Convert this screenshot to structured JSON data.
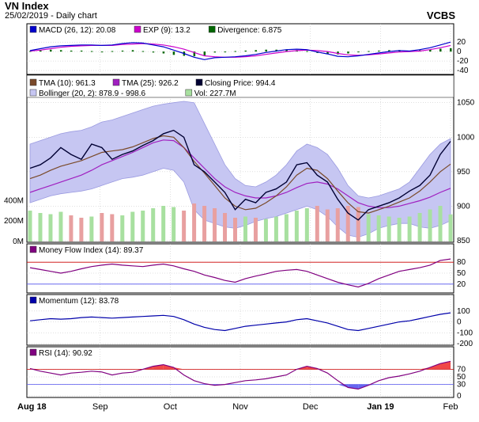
{
  "header": {
    "title": "VN Index",
    "subtitle": "25/02/2019 - Daily chart",
    "brand": "VCBS"
  },
  "colors": {
    "background": "#ffffff",
    "panel_border": "#000000",
    "grid": "#c0c0c0",
    "bollinger_fill": "#c6c6f2",
    "tma10": "#7a4a2a",
    "tma25": "#a020c0",
    "close": "#000033",
    "vol_up": "#a8e0a0",
    "vol_down": "#e8a0a0",
    "macd": "#0000cc",
    "exp": "#cc00cc",
    "divergence": "#006600",
    "mfi": "#800080",
    "momentum": "#0000aa",
    "rsi": "#800080",
    "overbought_fill": "#ee3333",
    "oversold_fill": "#5555ee",
    "ref_line": "#cc0000"
  },
  "x_axis": {
    "labels": [
      "Aug 18",
      "Sep",
      "Oct",
      "Nov",
      "Dec",
      "Jan 19",
      "Feb"
    ]
  },
  "chart_data": [
    {
      "type": "bar",
      "panel": "macd",
      "legend": [
        {
          "name": "MACD (26, 12)",
          "value": "20.08",
          "color": "#0000cc"
        },
        {
          "name": "EXP (9)",
          "value": "13.2",
          "color": "#cc00cc"
        },
        {
          "name": "Divergence",
          "value": "6.875",
          "color": "#006600"
        }
      ],
      "ylim": [
        -45,
        32
      ],
      "y_ticks": [
        -40,
        -20,
        0,
        20
      ],
      "series": [
        {
          "name": "MACD (26, 12)",
          "values": [
            2,
            6,
            10,
            12,
            13,
            14,
            14,
            13,
            14,
            17,
            19,
            18,
            14,
            10,
            3,
            -4,
            -12,
            -17,
            -13,
            -12,
            -11,
            -9,
            -6,
            -2,
            1,
            4,
            5,
            4,
            -1,
            -5,
            -10,
            -11,
            -9,
            -6,
            -3,
            0,
            2,
            1,
            4,
            8,
            14,
            20
          ]
        },
        {
          "name": "EXP (9)",
          "values": [
            1,
            3,
            6,
            9,
            11,
            12,
            13,
            13,
            13,
            15,
            16,
            17,
            16,
            14,
            10,
            5,
            -2,
            -9,
            -11,
            -12,
            -12,
            -11,
            -9,
            -6,
            -3,
            0,
            2,
            3,
            2,
            0,
            -4,
            -7,
            -8,
            -7,
            -5,
            -3,
            -1,
            0,
            1,
            4,
            8,
            13
          ]
        },
        {
          "name": "Divergence",
          "values": [
            1,
            3,
            4,
            3,
            2,
            2,
            1,
            0,
            1,
            2,
            3,
            1,
            -2,
            -4,
            -7,
            -9,
            -10,
            -8,
            -2,
            0,
            1,
            2,
            3,
            4,
            4,
            4,
            3,
            1,
            -3,
            -5,
            -6,
            -4,
            -1,
            1,
            2,
            3,
            3,
            1,
            3,
            4,
            6,
            7
          ]
        }
      ]
    },
    {
      "type": "line",
      "panel": "price",
      "legend": [
        {
          "name": "TMA (10)",
          "value": "961.3",
          "color": "#7a4a2a"
        },
        {
          "name": "TMA (25)",
          "value": "926.2",
          "color": "#a020c0"
        },
        {
          "name": "Closing Price",
          "value": "994.4",
          "color": "#000033"
        },
        {
          "name": "Bollinger (20, 2)",
          "value": "878.9 - 998.6",
          "color": "#c6c6f2"
        },
        {
          "name": "Vol",
          "value": "227.7M",
          "color": "#a8e0a0"
        }
      ],
      "ylim": [
        850,
        1060
      ],
      "y_ticks": [
        850,
        900,
        950,
        1000,
        1050
      ],
      "vol_ticks": [
        "0M",
        "200M",
        "400M"
      ],
      "vol_max": 800,
      "series": [
        {
          "name": "Closing Price",
          "values": [
            955,
            960,
            970,
            985,
            975,
            968,
            990,
            985,
            968,
            975,
            980,
            988,
            995,
            1005,
            1010,
            1000,
            960,
            950,
            935,
            920,
            895,
            910,
            905,
            920,
            925,
            935,
            960,
            963,
            945,
            935,
            910,
            890,
            880,
            895,
            900,
            905,
            912,
            922,
            930,
            945,
            975,
            994
          ]
        },
        {
          "name": "TMA (10)",
          "values": [
            940,
            945,
            952,
            958,
            962,
            966,
            972,
            978,
            980,
            982,
            986,
            992,
            998,
            1002,
            1000,
            985,
            965,
            948,
            930,
            912,
            900,
            895,
            897,
            905,
            915,
            928,
            945,
            955,
            952,
            940,
            922,
            905,
            892,
            890,
            895,
            900,
            906,
            912,
            922,
            935,
            950,
            961
          ]
        },
        {
          "name": "TMA (25)",
          "values": [
            920,
            925,
            930,
            935,
            940,
            945,
            952,
            960,
            966,
            972,
            978,
            985,
            992,
            996,
            995,
            985,
            970,
            955,
            940,
            928,
            920,
            915,
            912,
            912,
            915,
            920,
            927,
            933,
            935,
            932,
            925,
            915,
            905,
            900,
            898,
            898,
            900,
            904,
            908,
            913,
            920,
            926
          ]
        },
        {
          "name": "Bollinger upper",
          "values": [
            990,
            995,
            1000,
            1005,
            1008,
            1010,
            1015,
            1022,
            1025,
            1030,
            1035,
            1040,
            1045,
            1048,
            1050,
            1052,
            1050,
            1020,
            990,
            960,
            940,
            930,
            928,
            935,
            945,
            960,
            980,
            990,
            985,
            975,
            955,
            930,
            915,
            912,
            915,
            920,
            925,
            935,
            955,
            975,
            990,
            998
          ]
        },
        {
          "name": "Bollinger lower",
          "values": [
            905,
            910,
            915,
            918,
            920,
            922,
            925,
            930,
            935,
            940,
            942,
            945,
            950,
            955,
            952,
            935,
            895,
            880,
            875,
            870,
            868,
            872,
            878,
            882,
            885,
            890,
            895,
            900,
            895,
            885,
            870,
            858,
            855,
            860,
            868,
            872,
            875,
            875,
            870,
            868,
            872,
            879
          ]
        },
        {
          "name": "Vol",
          "values": [
            260,
            240,
            230,
            250,
            220,
            200,
            210,
            240,
            230,
            220,
            250,
            260,
            280,
            300,
            290,
            260,
            320,
            300,
            280,
            240,
            200,
            210,
            200,
            190,
            210,
            230,
            260,
            280,
            300,
            270,
            280,
            300,
            290,
            230,
            220,
            210,
            200,
            210,
            240,
            270,
            300,
            228
          ]
        }
      ]
    },
    {
      "type": "line",
      "panel": "mfi",
      "legend": [
        {
          "name": "Money Flow Index (14)",
          "value": "89.37",
          "color": "#800080"
        }
      ],
      "ylim": [
        0,
        100
      ],
      "y_ticks": [
        20,
        50,
        80
      ],
      "series": [
        {
          "name": "Money Flow Index (14)",
          "values": [
            65,
            60,
            55,
            50,
            55,
            62,
            68,
            72,
            75,
            72,
            70,
            68,
            72,
            75,
            70,
            62,
            55,
            45,
            38,
            30,
            25,
            35,
            42,
            48,
            55,
            58,
            60,
            55,
            45,
            35,
            25,
            18,
            12,
            22,
            35,
            45,
            55,
            60,
            65,
            72,
            85,
            89
          ]
        }
      ]
    },
    {
      "type": "line",
      "panel": "momentum",
      "legend": [
        {
          "name": "Momentum (12)",
          "value": "83.78",
          "color": "#0000aa"
        }
      ],
      "ylim": [
        -200,
        150
      ],
      "y_ticks": [
        -200,
        -100,
        0,
        100
      ],
      "series": [
        {
          "name": "Momentum (12)",
          "values": [
            10,
            20,
            30,
            25,
            30,
            40,
            45,
            40,
            35,
            40,
            45,
            50,
            55,
            60,
            50,
            20,
            -20,
            -50,
            -70,
            -80,
            -60,
            -40,
            -30,
            -20,
            -10,
            0,
            20,
            30,
            10,
            -10,
            -40,
            -70,
            -80,
            -60,
            -40,
            -20,
            0,
            10,
            30,
            50,
            70,
            84
          ]
        }
      ]
    },
    {
      "type": "line",
      "panel": "rsi",
      "legend": [
        {
          "name": "RSI (14)",
          "value": "90.92",
          "color": "#800080"
        }
      ],
      "ylim": [
        0,
        100
      ],
      "y_ticks": [
        0,
        30,
        50,
        70
      ],
      "series": [
        {
          "name": "RSI (14)",
          "values": [
            72,
            65,
            60,
            55,
            60,
            62,
            65,
            63,
            55,
            60,
            62,
            70,
            78,
            82,
            75,
            55,
            40,
            32,
            28,
            30,
            35,
            40,
            42,
            45,
            50,
            55,
            70,
            78,
            72,
            60,
            40,
            22,
            18,
            28,
            40,
            48,
            52,
            58,
            65,
            75,
            85,
            91
          ]
        }
      ]
    }
  ]
}
